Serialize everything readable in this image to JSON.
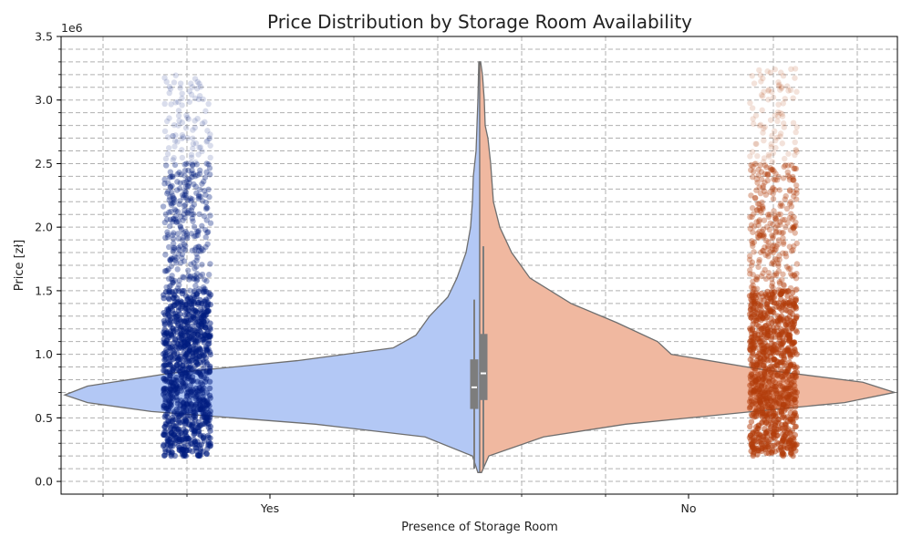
{
  "chart_data": {
    "type": "violin",
    "title": "Price Distribution by Storage Room Availability",
    "xlabel": "Presence of Storage Room",
    "ylabel": "Price [zł]",
    "y_offset_label": "1e6",
    "categories": [
      "Yes",
      "No"
    ],
    "ylim": [
      -0.1,
      3.5
    ],
    "y_ticks": [
      0.0,
      0.5,
      1.0,
      1.5,
      2.0,
      2.5,
      3.0,
      3.5
    ],
    "y_tick_labels": [
      "0.0",
      "0.5",
      "1.0",
      "1.5",
      "2.0",
      "2.5",
      "3.0",
      "3.5"
    ],
    "grid": true,
    "series": [
      {
        "category": "Yes",
        "color": "#b3c8f5",
        "point_color": "#001c7f",
        "side": "left",
        "points_range": [
          0.2,
          3.2
        ],
        "box": {
          "q1": 0.57,
          "median": 0.74,
          "q3": 0.96,
          "whisker_low": 0.1,
          "whisker_high": 1.43
        }
      },
      {
        "category": "No",
        "color": "#f0b8a0",
        "point_color": "#b13c09",
        "side": "right",
        "points_range": [
          0.2,
          3.25
        ],
        "box": {
          "q1": 0.64,
          "median": 0.85,
          "q3": 1.16,
          "whisker_low": 0.1,
          "whisker_high": 1.85
        }
      }
    ]
  }
}
